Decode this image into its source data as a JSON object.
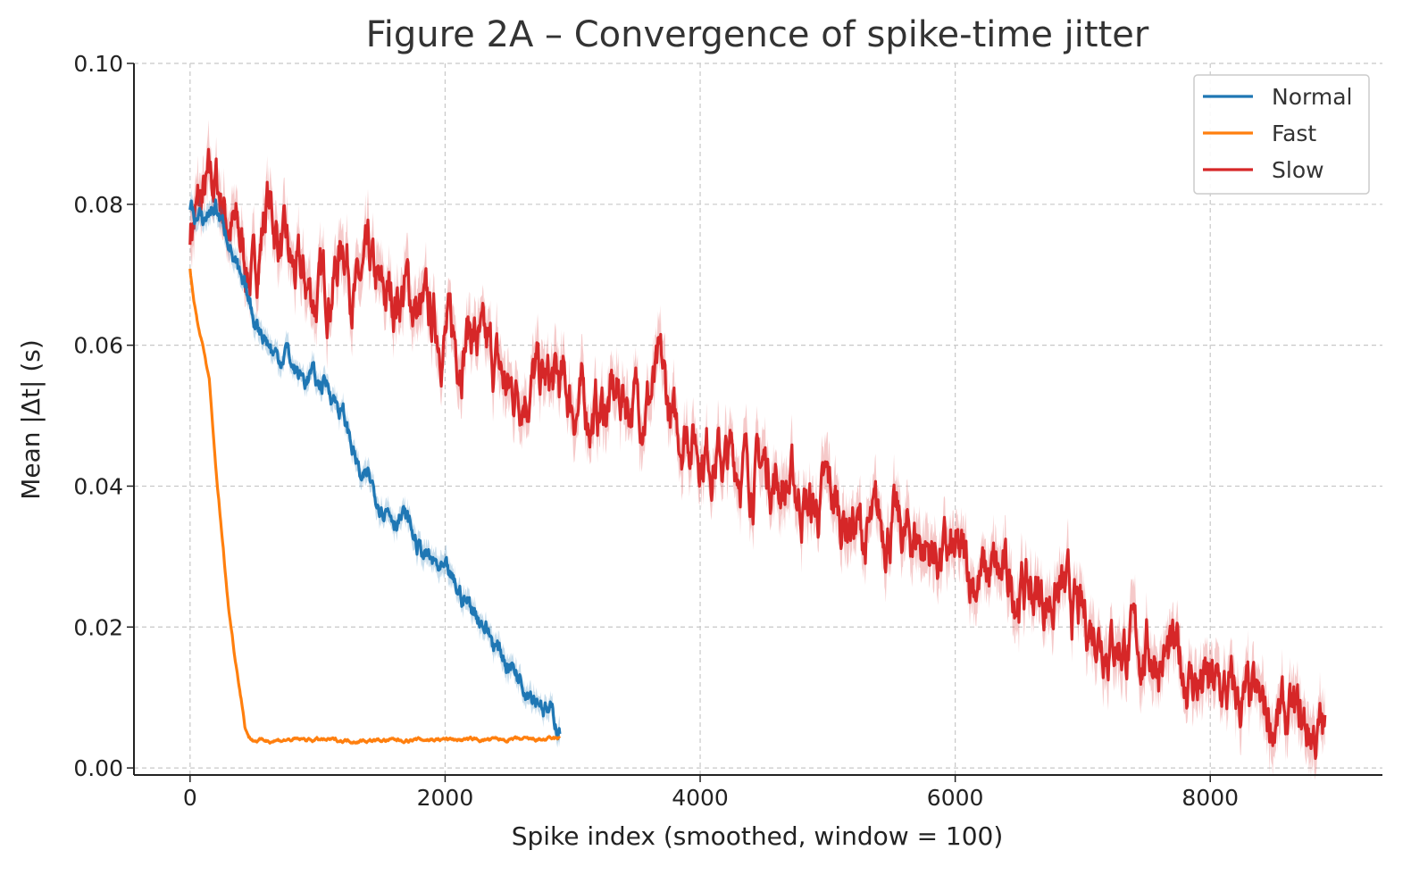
{
  "chart_data": {
    "type": "line",
    "title": "Figure 2A – Convergence of spike-time jitter",
    "xlabel": "Spike index (smoothed, window = 100)",
    "ylabel": "Mean |Δt| (s)",
    "xlim": [
      -440,
      9350
    ],
    "ylim": [
      -0.001,
      0.1
    ],
    "xticks": [
      0,
      2000,
      4000,
      6000,
      8000
    ],
    "xtick_labels": [
      "0",
      "2000",
      "4000",
      "6000",
      "8000"
    ],
    "yticks": [
      0.0,
      0.02,
      0.04,
      0.06,
      0.08,
      0.1
    ],
    "ytick_labels": [
      "0.00",
      "0.02",
      "0.04",
      "0.06",
      "0.08",
      "0.10"
    ],
    "grid": true,
    "legend_position": "top-right",
    "series": [
      {
        "name": "Normal",
        "color": "#1f77b4",
        "noise": 0.0009,
        "band": 0.0015,
        "x": [
          0,
          50,
          100,
          150,
          200,
          250,
          300,
          350,
          400,
          450,
          500,
          550,
          600,
          650,
          700,
          750,
          800,
          850,
          900,
          950,
          1000,
          1050,
          1100,
          1150,
          1200,
          1250,
          1300,
          1350,
          1400,
          1450,
          1500,
          1550,
          1600,
          1650,
          1700,
          1750,
          1800,
          1850,
          1900,
          1950,
          2000,
          2050,
          2100,
          2150,
          2200,
          2250,
          2300,
          2350,
          2400,
          2450,
          2500,
          2550,
          2600,
          2650,
          2700,
          2750,
          2800,
          2850,
          2900
        ],
        "y": [
          0.08,
          0.078,
          0.077,
          0.079,
          0.08,
          0.077,
          0.076,
          0.072,
          0.068,
          0.066,
          0.064,
          0.063,
          0.061,
          0.059,
          0.058,
          0.06,
          0.057,
          0.056,
          0.055,
          0.056,
          0.054,
          0.055,
          0.054,
          0.052,
          0.05,
          0.047,
          0.044,
          0.04,
          0.041,
          0.039,
          0.038,
          0.037,
          0.036,
          0.036,
          0.035,
          0.033,
          0.031,
          0.03,
          0.029,
          0.028,
          0.027,
          0.026,
          0.025,
          0.024,
          0.023,
          0.022,
          0.021,
          0.019,
          0.017,
          0.016,
          0.015,
          0.014,
          0.013,
          0.012,
          0.011,
          0.01,
          0.008,
          0.007,
          0.0055
        ]
      },
      {
        "name": "Fast",
        "color": "#ff7f0e",
        "noise": 0.00015,
        "band": 0.0003,
        "x": [
          0,
          30,
          60,
          100,
          150,
          200,
          250,
          300,
          350,
          400,
          430,
          460,
          490,
          520,
          600,
          800,
          1000,
          1200,
          1500,
          1800,
          2000,
          2200,
          2500,
          2700,
          2900
        ],
        "y": [
          0.071,
          0.066,
          0.063,
          0.06,
          0.055,
          0.043,
          0.033,
          0.023,
          0.016,
          0.01,
          0.006,
          0.0045,
          0.004,
          0.0039,
          0.0039,
          0.004,
          0.004,
          0.0039,
          0.0039,
          0.004,
          0.0041,
          0.004,
          0.004,
          0.004,
          0.0041
        ]
      },
      {
        "name": "Slow",
        "color": "#d62728",
        "noise": 0.0025,
        "band": 0.0035,
        "x": [
          0,
          100,
          200,
          300,
          400,
          500,
          560,
          600,
          700,
          800,
          900,
          1000,
          1100,
          1180,
          1200,
          1300,
          1400,
          1500,
          1600,
          1700,
          1800,
          1900,
          2000,
          2100,
          2200,
          2300,
          2400,
          2500,
          2600,
          2700,
          2800,
          2900,
          3000,
          3100,
          3200,
          3300,
          3400,
          3500,
          3600,
          3700,
          3800,
          3900,
          4000,
          4100,
          4200,
          4300,
          4400,
          4500,
          4600,
          4700,
          4800,
          4900,
          5000,
          5100,
          5200,
          5300,
          5400,
          5500,
          5600,
          5700,
          5800,
          5900,
          6000,
          6100,
          6200,
          6300,
          6400,
          6500,
          6600,
          6700,
          6800,
          6900,
          7000,
          7100,
          7200,
          7300,
          7400,
          7500,
          7600,
          7700,
          7800,
          7900,
          8000,
          8100,
          8200,
          8300,
          8400,
          8500,
          8600,
          8700,
          8800,
          8900
        ],
        "y": [
          0.077,
          0.08,
          0.083,
          0.078,
          0.074,
          0.069,
          0.076,
          0.081,
          0.075,
          0.07,
          0.068,
          0.067,
          0.069,
          0.073,
          0.076,
          0.067,
          0.07,
          0.066,
          0.067,
          0.068,
          0.064,
          0.063,
          0.062,
          0.06,
          0.063,
          0.058,
          0.057,
          0.053,
          0.055,
          0.055,
          0.054,
          0.054,
          0.052,
          0.051,
          0.05,
          0.052,
          0.053,
          0.052,
          0.053,
          0.055,
          0.047,
          0.049,
          0.046,
          0.045,
          0.043,
          0.044,
          0.042,
          0.043,
          0.041,
          0.04,
          0.038,
          0.036,
          0.039,
          0.036,
          0.035,
          0.032,
          0.034,
          0.035,
          0.032,
          0.033,
          0.031,
          0.03,
          0.029,
          0.028,
          0.027,
          0.027,
          0.026,
          0.026,
          0.025,
          0.024,
          0.025,
          0.023,
          0.02,
          0.021,
          0.019,
          0.018,
          0.017,
          0.017,
          0.016,
          0.015,
          0.014,
          0.012,
          0.011,
          0.0105,
          0.0095,
          0.0085,
          0.0075,
          0.007,
          0.0065,
          0.006,
          0.0052,
          0.0045
        ]
      }
    ]
  }
}
